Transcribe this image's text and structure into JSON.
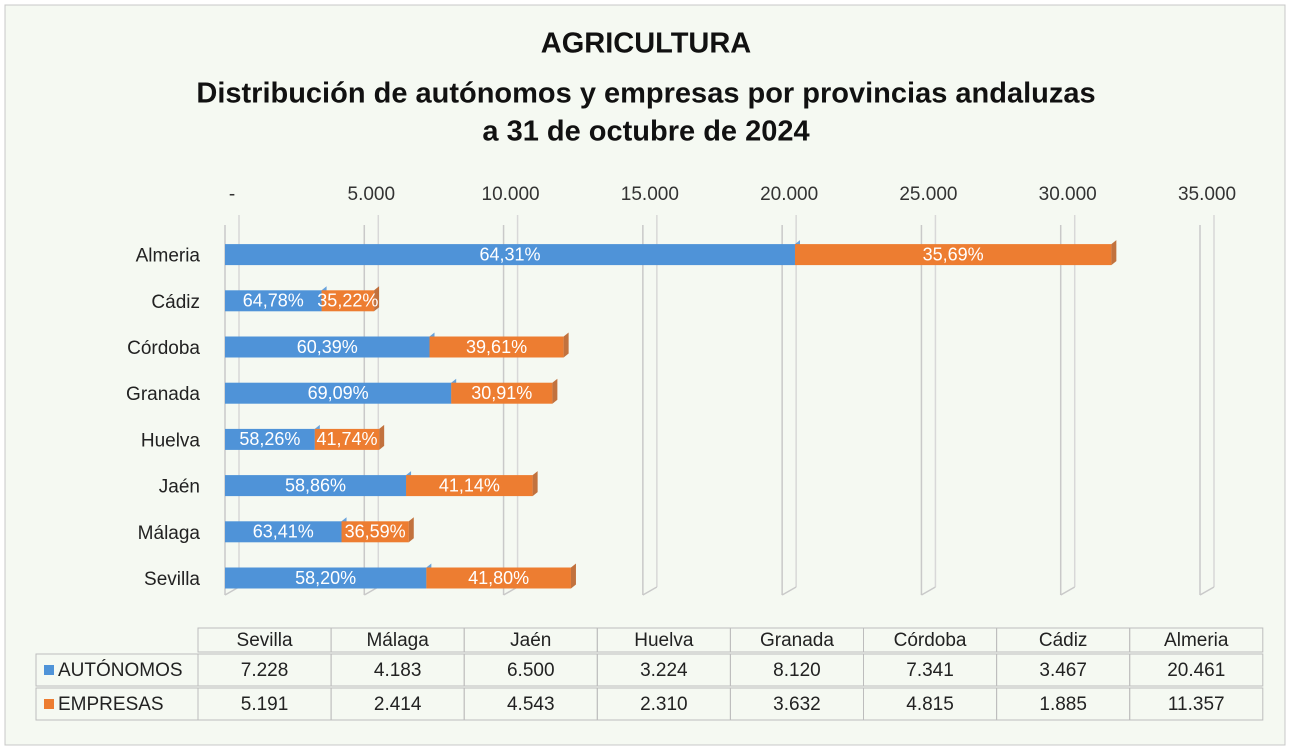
{
  "chart_data": {
    "type": "stacked_bar_horizontal",
    "title": "AGRICULTURA",
    "subtitle": [
      "Distribución de autónomos y empresas por provincias andaluzas",
      "a 31 de octubre de 2024"
    ],
    "categories": [
      "Sevilla",
      "Málaga",
      "Jaén",
      "Huelva",
      "Granada",
      "Córdoba",
      "Cádiz",
      "Almeria"
    ],
    "series": [
      {
        "name": "AUTÓNOMOS",
        "color": "#4f93d8",
        "values": [
          7228,
          4183,
          6500,
          3224,
          8120,
          7341,
          3467,
          20461
        ],
        "value_labels": [
          "7.228",
          "4.183",
          "6.500",
          "3.224",
          "8.120",
          "7.341",
          "3.467",
          "20.461"
        ],
        "percent_labels": [
          "58,20%",
          "63,41%",
          "58,86%",
          "58,26%",
          "69,09%",
          "60,39%",
          "64,78%",
          "64,31%"
        ]
      },
      {
        "name": "EMPRESAS",
        "color": "#ed7d31",
        "values": [
          5191,
          2414,
          4543,
          2310,
          3632,
          4815,
          1885,
          11357
        ],
        "value_labels": [
          "5.191",
          "2.414",
          "4.543",
          "2.310",
          "3.632",
          "4.815",
          "1.885",
          "11.357"
        ],
        "percent_labels": [
          "41,80%",
          "36,59%",
          "41,14%",
          "41,74%",
          "30,91%",
          "39,61%",
          "35,22%",
          "35,69%"
        ]
      }
    ],
    "xlim": [
      0,
      35000
    ],
    "xticks": [
      {
        "value": 0,
        "label": "-"
      },
      {
        "value": 5000,
        "label": "5.000"
      },
      {
        "value": 10000,
        "label": "10.000"
      },
      {
        "value": 15000,
        "label": "15.000"
      },
      {
        "value": 20000,
        "label": "20.000"
      },
      {
        "value": 25000,
        "label": "25.000"
      },
      {
        "value": 30000,
        "label": "30.000"
      },
      {
        "value": 35000,
        "label": "35.000"
      }
    ],
    "grid": true
  }
}
